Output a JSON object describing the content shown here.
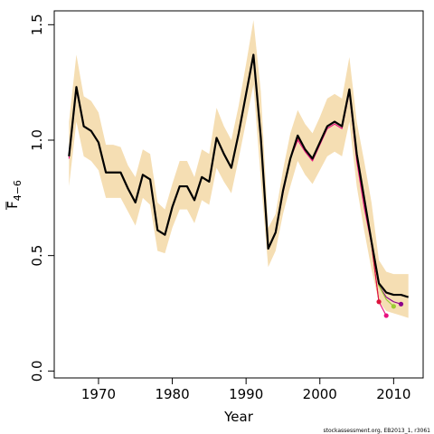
{
  "chart_data": {
    "type": "line",
    "xlabel": "Year",
    "ylabel_main": "F",
    "ylabel_sub": "4−6",
    "xlim": [
      1964,
      2014
    ],
    "ylim": [
      -0.03,
      1.56
    ],
    "x_ticks": [
      1970,
      1980,
      1990,
      2000,
      2010
    ],
    "x_tick_labels": [
      "1970",
      "1980",
      "1990",
      "2000",
      "2010"
    ],
    "y_ticks": [
      0.0,
      0.5,
      1.0,
      1.5
    ],
    "y_tick_labels": [
      "0.0",
      "0.5",
      "1.0",
      "1.5"
    ],
    "grid": false,
    "footnote": "stockassessment.org, EB2013_1, r3061",
    "band_color": "#F5DEB3",
    "years": [
      1966,
      1967,
      1968,
      1969,
      1970,
      1971,
      1972,
      1973,
      1974,
      1975,
      1976,
      1977,
      1978,
      1979,
      1980,
      1981,
      1982,
      1983,
      1984,
      1985,
      1986,
      1987,
      1988,
      1989,
      1990,
      1991,
      1992,
      1993,
      1994,
      1995,
      1996,
      1997,
      1998,
      1999,
      2000,
      2001,
      2002,
      2003,
      2004,
      2005,
      2006,
      2007,
      2008,
      2009,
      2010,
      2011,
      2012
    ],
    "band_lower": [
      0.8,
      1.08,
      0.93,
      0.91,
      0.87,
      0.75,
      0.75,
      0.75,
      0.69,
      0.63,
      0.75,
      0.72,
      0.52,
      0.51,
      0.62,
      0.7,
      0.7,
      0.64,
      0.74,
      0.72,
      0.88,
      0.82,
      0.77,
      0.92,
      1.08,
      1.24,
      0.83,
      0.45,
      0.52,
      0.68,
      0.8,
      0.91,
      0.85,
      0.81,
      0.87,
      0.93,
      0.95,
      0.93,
      1.08,
      0.8,
      0.61,
      0.44,
      0.3,
      0.26,
      0.25,
      0.24,
      0.23
    ],
    "band_upper": [
      1.08,
      1.37,
      1.19,
      1.17,
      1.12,
      0.98,
      0.98,
      0.97,
      0.89,
      0.84,
      0.96,
      0.94,
      0.73,
      0.7,
      0.81,
      0.91,
      0.91,
      0.84,
      0.96,
      0.94,
      1.14,
      1.06,
      1.0,
      1.15,
      1.33,
      1.52,
      1.21,
      0.62,
      0.68,
      0.87,
      1.03,
      1.13,
      1.07,
      1.03,
      1.1,
      1.18,
      1.2,
      1.18,
      1.36,
      1.08,
      0.91,
      0.73,
      0.48,
      0.43,
      0.42,
      0.42,
      0.42
    ],
    "series": [
      {
        "color": "#000000",
        "values": [
          0.93,
          1.23,
          1.06,
          1.04,
          0.99,
          0.86,
          0.86,
          0.86,
          0.79,
          0.73,
          0.85,
          0.83,
          0.61,
          0.59,
          0.71,
          0.8,
          0.8,
          0.74,
          0.84,
          0.82,
          1.01,
          0.94,
          0.88,
          1.03,
          1.2,
          1.37,
          1.01,
          0.53,
          0.6,
          0.78,
          0.92,
          1.02,
          0.96,
          0.92,
          0.99,
          1.06,
          1.08,
          1.06,
          1.22,
          0.94,
          0.75,
          0.56,
          0.38,
          0.34,
          0.33,
          0.33,
          0.32
        ]
      },
      {
        "color": "#E8117F",
        "values": [
          0.92,
          1.22,
          1.06,
          1.04,
          0.99,
          0.86,
          0.86,
          0.86,
          0.79,
          0.73,
          0.85,
          0.83,
          0.61,
          0.59,
          0.71,
          0.8,
          0.8,
          0.74,
          0.84,
          0.82,
          1.01,
          0.94,
          0.88,
          1.03,
          1.2,
          1.36,
          1.01,
          0.53,
          0.6,
          0.77,
          0.92,
          1.0,
          0.95,
          0.91,
          0.98,
          1.05,
          1.07,
          1.05,
          1.21,
          0.91,
          0.71,
          0.55,
          0.3,
          0.24
        ]
      },
      {
        "color": "#DC143C",
        "values": [
          0.93,
          1.23,
          1.06,
          1.04,
          0.99,
          0.86,
          0.86,
          0.86,
          0.79,
          0.73,
          0.85,
          0.83,
          0.61,
          0.59,
          0.71,
          0.8,
          0.8,
          0.74,
          0.84,
          0.82,
          1.01,
          0.94,
          0.88,
          1.03,
          1.2,
          1.37,
          1.01,
          0.53,
          0.6,
          0.78,
          0.92,
          1.01,
          0.96,
          0.92,
          0.99,
          1.06,
          1.08,
          1.06,
          1.22,
          0.93,
          0.74,
          0.55,
          0.3
        ]
      },
      {
        "color": "#9ACD32",
        "values": [
          0.93,
          1.23,
          1.06,
          1.04,
          0.99,
          0.86,
          0.86,
          0.86,
          0.79,
          0.73,
          0.85,
          0.83,
          0.61,
          0.59,
          0.71,
          0.8,
          0.8,
          0.74,
          0.84,
          0.82,
          1.01,
          0.94,
          0.88,
          1.03,
          1.2,
          1.37,
          1.01,
          0.53,
          0.6,
          0.78,
          0.92,
          1.01,
          0.96,
          0.92,
          0.99,
          1.06,
          1.08,
          1.06,
          1.22,
          0.94,
          0.75,
          0.56,
          0.37,
          0.31,
          0.28
        ]
      },
      {
        "color": "#8B008B",
        "values": [
          0.93,
          1.23,
          1.06,
          1.04,
          0.99,
          0.86,
          0.86,
          0.86,
          0.79,
          0.73,
          0.85,
          0.83,
          0.61,
          0.59,
          0.71,
          0.8,
          0.8,
          0.74,
          0.84,
          0.82,
          1.01,
          0.94,
          0.88,
          1.03,
          1.2,
          1.37,
          1.01,
          0.53,
          0.6,
          0.78,
          0.92,
          1.01,
          0.96,
          0.92,
          0.99,
          1.06,
          1.08,
          1.06,
          1.22,
          0.94,
          0.75,
          0.56,
          0.37,
          0.32,
          0.3,
          0.29
        ]
      }
    ]
  }
}
